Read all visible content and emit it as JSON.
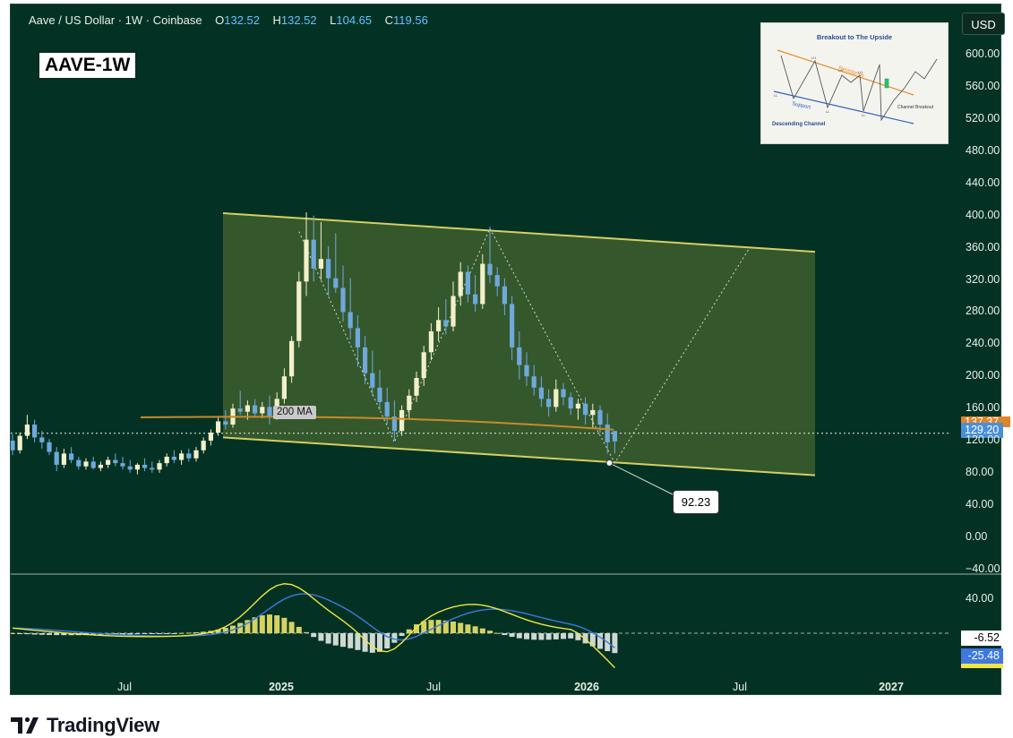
{
  "header": {
    "symbol_title": "Aave / US Dollar · 1W · Coinbase",
    "o_label": "O",
    "o_value": "132.52",
    "h_label": "H",
    "h_value": "132.52",
    "l_label": "L",
    "l_value": "104.65",
    "c_label": "C",
    "c_value": "119.56"
  },
  "symbol_box": "AAVE-1W",
  "currency_button": "USD",
  "inset_diagram": {
    "title": "Breakout to The Upside",
    "resistance_label": "Resistance",
    "support_label": "Support",
    "channel_label": "Descending Channel",
    "breakout_label": "Channel Breakout",
    "point_labels": [
      "LH",
      "LH",
      "LH",
      "LL",
      "LL",
      "LL"
    ]
  },
  "ma_label": "200 MA",
  "callout_value": "92.23",
  "current_price": "129.20",
  "ma_price_partial": "137.37",
  "macd_values": {
    "histogram": "-6.52",
    "signal": "-25.48"
  },
  "footer_logo_text": "TradingView",
  "colors": {
    "background": "#033224",
    "up_candle": "#f3f0c9",
    "down_candle": "#6fa8dc",
    "channel_fill": "#3d5f2e",
    "channel_line": "#d6cf62",
    "ma_line": "#c98a2a",
    "macd_line": "#3f78e0",
    "signal_line": "#f0e640",
    "hist_pos": "#d6d262",
    "hist_neg": "#cfd8d3",
    "price_tag": "#4a90d9",
    "ma_tag": "#e0832b"
  },
  "chart_data": {
    "type": "candlestick",
    "x_ticks": [
      "Jul",
      "2025",
      "Jul",
      "2026",
      "Jul",
      "2027"
    ],
    "price_axis": {
      "ticks": [
        600,
        560,
        520,
        480,
        440,
        400,
        360,
        320,
        280,
        240,
        200,
        160,
        120,
        80,
        40,
        0,
        -40
      ],
      "range": [
        -40,
        625
      ]
    },
    "macd_axis": {
      "ticks": [
        40
      ],
      "zero_line": 0
    },
    "channel": {
      "upper_start": 403,
      "upper_end": 355,
      "lower_start": 124,
      "lower_end": 77
    },
    "ma200_level_approx": 137,
    "low_marker": 92.23,
    "last_close": 119.56,
    "current_price_line": 129.2,
    "projection": {
      "from": 92.23,
      "to": 360
    },
    "candles_weekly_approx": [
      [
        120,
        128,
        102,
        108
      ],
      [
        108,
        130,
        104,
        126
      ],
      [
        126,
        152,
        122,
        140
      ],
      [
        140,
        146,
        118,
        124
      ],
      [
        124,
        132,
        110,
        118
      ],
      [
        118,
        122,
        102,
        106
      ],
      [
        106,
        112,
        82,
        90
      ],
      [
        90,
        110,
        86,
        104
      ],
      [
        104,
        112,
        92,
        96
      ],
      [
        96,
        100,
        84,
        88
      ],
      [
        88,
        98,
        84,
        94
      ],
      [
        94,
        100,
        84,
        86
      ],
      [
        86,
        94,
        82,
        90
      ],
      [
        90,
        100,
        86,
        96
      ],
      [
        96,
        104,
        88,
        92
      ],
      [
        92,
        100,
        84,
        88
      ],
      [
        88,
        96,
        80,
        84
      ],
      [
        84,
        92,
        78,
        90
      ],
      [
        90,
        98,
        82,
        86
      ],
      [
        86,
        94,
        80,
        84
      ],
      [
        84,
        96,
        80,
        92
      ],
      [
        92,
        104,
        88,
        100
      ],
      [
        100,
        108,
        92,
        96
      ],
      [
        96,
        108,
        90,
        104
      ],
      [
        104,
        110,
        94,
        98
      ],
      [
        98,
        112,
        94,
        108
      ],
      [
        108,
        124,
        104,
        120
      ],
      [
        120,
        134,
        114,
        130
      ],
      [
        130,
        150,
        126,
        144
      ],
      [
        144,
        158,
        134,
        140
      ],
      [
        140,
        166,
        136,
        160
      ],
      [
        160,
        182,
        152,
        156
      ],
      [
        156,
        170,
        146,
        164
      ],
      [
        164,
        172,
        150,
        154
      ],
      [
        154,
        168,
        148,
        162
      ],
      [
        162,
        176,
        140,
        150
      ],
      [
        150,
        180,
        146,
        172
      ],
      [
        172,
        210,
        166,
        200
      ],
      [
        200,
        250,
        192,
        244
      ],
      [
        244,
        330,
        236,
        318
      ],
      [
        318,
        404,
        300,
        370
      ],
      [
        370,
        400,
        318,
        334
      ],
      [
        334,
        392,
        320,
        346
      ],
      [
        346,
        362,
        300,
        322
      ],
      [
        322,
        378,
        304,
        310
      ],
      [
        310,
        338,
        268,
        280
      ],
      [
        280,
        322,
        246,
        260
      ],
      [
        260,
        276,
        212,
        236
      ],
      [
        236,
        250,
        190,
        204
      ],
      [
        204,
        232,
        176,
        186
      ],
      [
        186,
        208,
        158,
        168
      ],
      [
        168,
        186,
        140,
        150
      ],
      [
        150,
        170,
        120,
        132
      ],
      [
        132,
        164,
        126,
        158
      ],
      [
        158,
        184,
        148,
        176
      ],
      [
        176,
        206,
        168,
        198
      ],
      [
        198,
        238,
        188,
        230
      ],
      [
        230,
        266,
        220,
        256
      ],
      [
        256,
        286,
        244,
        270
      ],
      [
        270,
        296,
        252,
        262
      ],
      [
        262,
        318,
        256,
        300
      ],
      [
        300,
        342,
        288,
        330
      ],
      [
        330,
        338,
        292,
        302
      ],
      [
        302,
        326,
        280,
        290
      ],
      [
        290,
        352,
        284,
        340
      ],
      [
        340,
        386,
        316,
        326
      ],
      [
        326,
        336,
        300,
        312
      ],
      [
        312,
        322,
        276,
        290
      ],
      [
        290,
        300,
        220,
        236
      ],
      [
        236,
        256,
        196,
        214
      ],
      [
        214,
        230,
        188,
        200
      ],
      [
        200,
        214,
        176,
        186
      ],
      [
        186,
        200,
        162,
        172
      ],
      [
        172,
        184,
        150,
        162
      ],
      [
        162,
        196,
        156,
        184
      ],
      [
        184,
        192,
        164,
        174
      ],
      [
        174,
        180,
        152,
        160
      ],
      [
        160,
        172,
        146,
        166
      ],
      [
        166,
        174,
        140,
        152
      ],
      [
        152,
        166,
        136,
        158
      ],
      [
        158,
        164,
        130,
        140
      ],
      [
        140,
        154,
        104,
        118
      ],
      [
        132,
        132,
        104,
        119
      ]
    ]
  }
}
